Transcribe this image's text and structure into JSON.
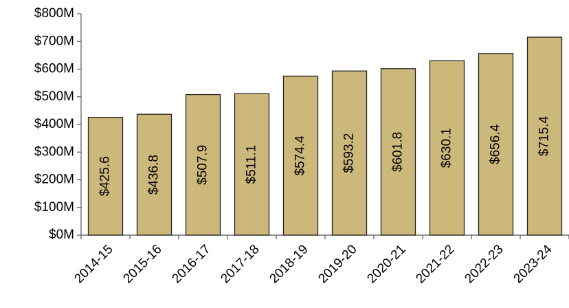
{
  "chart_data": {
    "type": "bar",
    "categories": [
      "2014-15",
      "2015-16",
      "2016-17",
      "2017-18",
      "2018-19",
      "2019-20",
      "2020-21",
      "2021-22",
      "2022-23",
      "2023-24"
    ],
    "values": [
      425.6,
      436.8,
      507.9,
      511.1,
      574.4,
      593.2,
      601.8,
      630.1,
      656.4,
      715.4
    ],
    "value_labels": [
      "$425.6",
      "$436.8",
      "$507.9",
      "$511.1",
      "$574.4",
      "$593.2",
      "$601.8",
      "$630.1",
      "$656.4",
      "$715.4"
    ],
    "color": "#cdb87b",
    "ylim": [
      0,
      800
    ],
    "yticks": [
      {
        "value": 0,
        "label": "$0M"
      },
      {
        "value": 100,
        "label": "$100M"
      },
      {
        "value": 200,
        "label": "$200M"
      },
      {
        "value": 300,
        "label": "$300M"
      },
      {
        "value": 400,
        "label": "$400M"
      },
      {
        "value": 500,
        "label": "$500M"
      },
      {
        "value": 600,
        "label": "$600M"
      },
      {
        "value": 700,
        "label": "$700M"
      },
      {
        "value": 800,
        "label": "$800M"
      }
    ],
    "grid": false
  }
}
